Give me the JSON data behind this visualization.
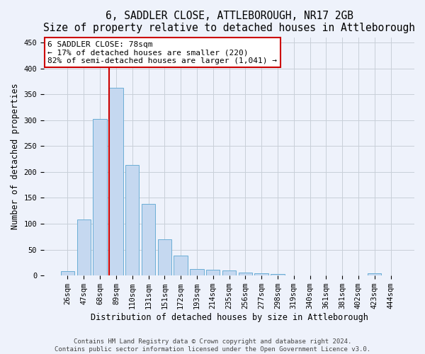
{
  "title": "6, SADDLER CLOSE, ATTLEBOROUGH, NR17 2GB",
  "subtitle": "Size of property relative to detached houses in Attleborough",
  "xlabel": "Distribution of detached houses by size in Attleborough",
  "ylabel": "Number of detached properties",
  "bar_color": "#c5d8f0",
  "bar_edge_color": "#6baed6",
  "categories": [
    "26sqm",
    "47sqm",
    "68sqm",
    "89sqm",
    "110sqm",
    "131sqm",
    "151sqm",
    "172sqm",
    "193sqm",
    "214sqm",
    "235sqm",
    "256sqm",
    "277sqm",
    "298sqm",
    "319sqm",
    "340sqm",
    "361sqm",
    "381sqm",
    "402sqm",
    "423sqm",
    "444sqm"
  ],
  "values": [
    9,
    108,
    303,
    362,
    213,
    138,
    70,
    38,
    13,
    11,
    10,
    6,
    5,
    3,
    0,
    0,
    0,
    0,
    0,
    4,
    0
  ],
  "ylim": [
    0,
    460
  ],
  "yticks": [
    0,
    50,
    100,
    150,
    200,
    250,
    300,
    350,
    400,
    450
  ],
  "vline_position": 2.575,
  "vline_color": "#cc0000",
  "annotation_line1": "6 SADDLER CLOSE: 78sqm",
  "annotation_line2": "← 17% of detached houses are smaller (220)",
  "annotation_line3": "82% of semi-detached houses are larger (1,041) →",
  "annotation_box_color": "#cc0000",
  "footer_text": "Contains HM Land Registry data © Crown copyright and database right 2024.\nContains public sector information licensed under the Open Government Licence v3.0.",
  "background_color": "#eef2fb",
  "grid_color": "#c8cfd8",
  "title_fontsize": 10.5,
  "subtitle_fontsize": 9.5,
  "label_fontsize": 8.5,
  "tick_fontsize": 7.5,
  "footer_fontsize": 6.5,
  "annotation_fontsize": 8
}
